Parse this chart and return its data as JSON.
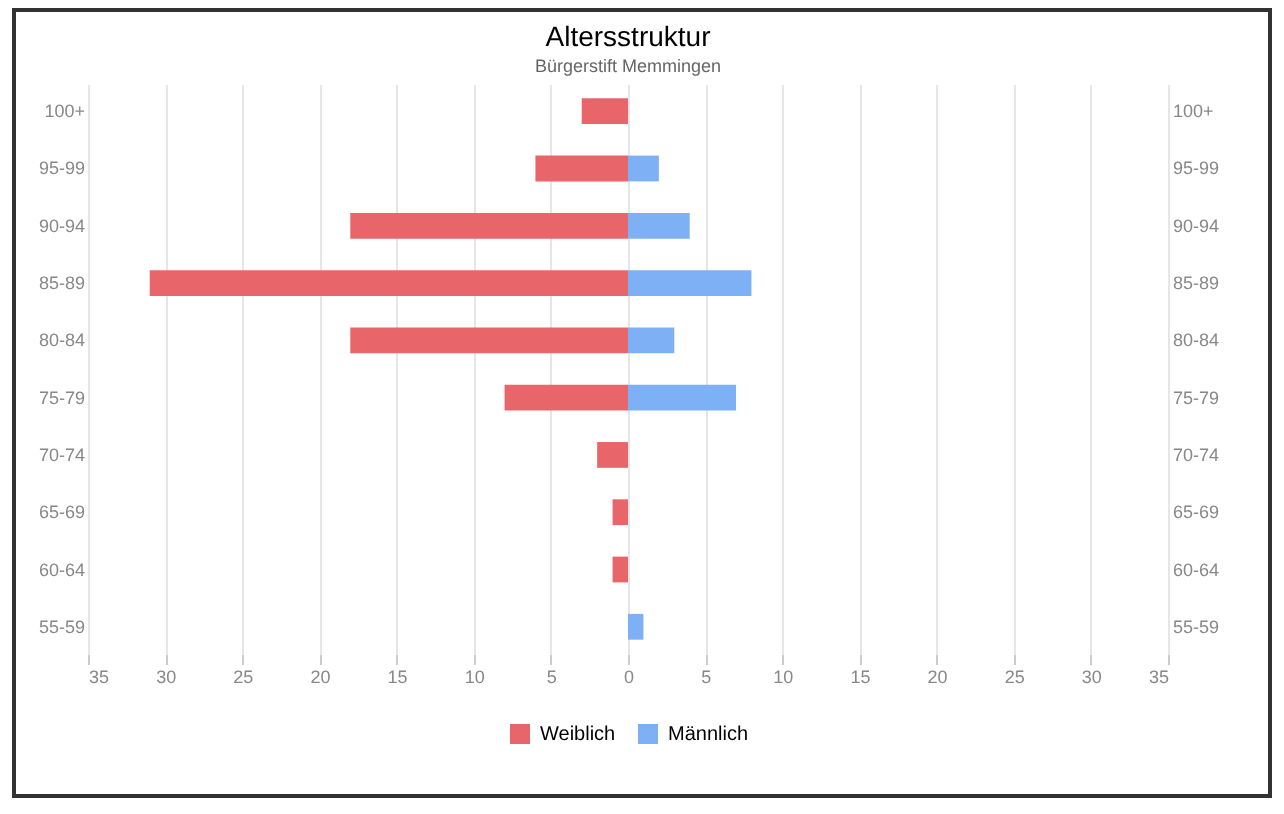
{
  "chart_data": {
    "type": "bar",
    "orientation": "horizontal",
    "title": "Altersstruktur",
    "subtitle": "Bürgerstift Memmingen",
    "categories": [
      "100+",
      "95-99",
      "90-94",
      "85-89",
      "80-84",
      "75-79",
      "70-74",
      "65-69",
      "60-64",
      "55-59"
    ],
    "series": [
      {
        "name": "Weiblich",
        "color": "#e8666a",
        "values": [
          -3,
          -6,
          -18,
          -31,
          -18,
          -8,
          -2,
          -1,
          -1,
          0
        ]
      },
      {
        "name": "Männlich",
        "color": "#7eb0f5",
        "values": [
          0,
          2,
          4,
          8,
          3,
          7,
          0,
          0,
          0,
          1
        ]
      }
    ],
    "xlim": [
      -35,
      35
    ],
    "xticks": [
      {
        "value": -35,
        "label": "35"
      },
      {
        "value": -30,
        "label": "30"
      },
      {
        "value": -25,
        "label": "25"
      },
      {
        "value": -20,
        "label": "20"
      },
      {
        "value": -15,
        "label": "15"
      },
      {
        "value": -10,
        "label": "10"
      },
      {
        "value": -5,
        "label": "5"
      },
      0,
      5,
      10,
      15,
      20,
      25,
      30,
      35
    ],
    "stacked": true,
    "grid": "x",
    "legend": "bottom"
  }
}
